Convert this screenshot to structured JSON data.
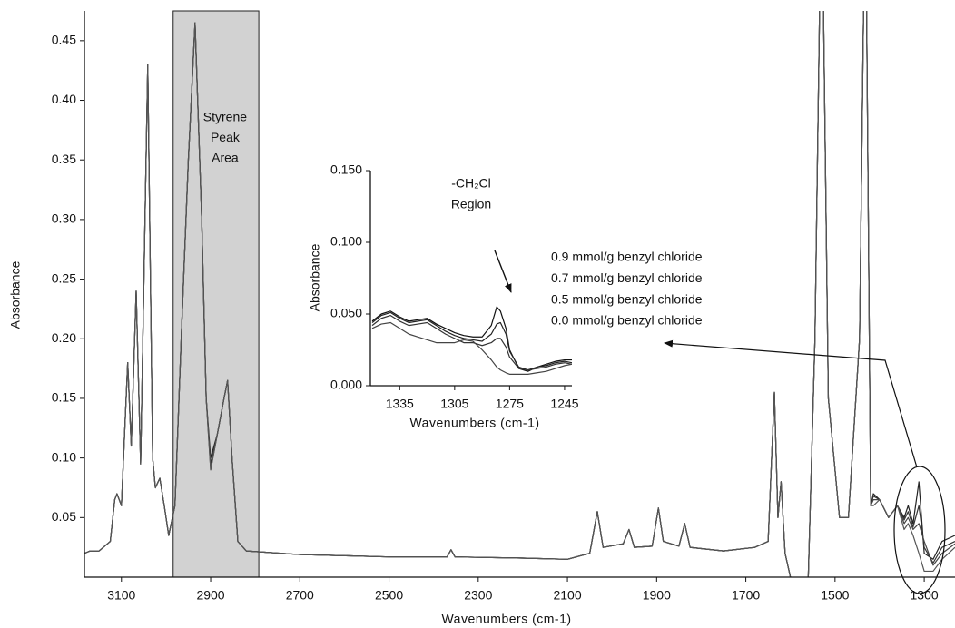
{
  "chart_data": [
    {
      "type": "line",
      "xlabel": "Wavenumbers (cm-1)",
      "ylabel": "Absorbance",
      "xlim": [
        3183,
        1231
      ],
      "ylim": [
        0,
        0.475
      ],
      "xticks": [
        3100,
        2900,
        2700,
        2500,
        2300,
        2100,
        1900,
        1700,
        1500,
        1300
      ],
      "yticks": [
        0.05,
        {
          "value": 0.1,
          "label": "0.10"
        },
        0.15,
        {
          "value": 0.2,
          "label": "0.20"
        },
        0.25,
        {
          "value": 0.3,
          "label": "0.30"
        },
        0.35,
        {
          "value": 0.4,
          "label": "0.40"
        },
        0.45
      ],
      "shaded_region": {
        "x": [
          2984,
          2792
        ],
        "label": [
          "Styrene",
          "Peak",
          "Area"
        ],
        "color": "#d2d2d2"
      },
      "x": [
        3183,
        3170,
        3150,
        3125,
        3115,
        3110,
        3100,
        3086,
        3078,
        3067,
        3057,
        3041,
        3030,
        3024,
        3014,
        3004,
        2994,
        2980,
        2966,
        2950,
        2935,
        2920,
        2910,
        2900,
        2885,
        2870,
        2862,
        2852,
        2839,
        2820,
        2700,
        2600,
        2500,
        2400,
        2370,
        2361,
        2352,
        2200,
        2100,
        2050,
        2033,
        2020,
        1975,
        1962,
        1950,
        1910,
        1896,
        1885,
        1850,
        1837,
        1825,
        1750,
        1680,
        1650,
        1636,
        1628,
        1621,
        1612,
        1600,
        1585,
        1560,
        1545,
        1530,
        1515,
        1490,
        1470,
        1445,
        1432,
        1420,
        1414,
        1400,
        1380,
        1360,
        1345,
        1336,
        1325,
        1312,
        1300,
        1280,
        1260,
        1231
      ],
      "series": [
        {
          "color": "#222222",
          "values": [
            0.02,
            0.022,
            0.022,
            0.03,
            0.065,
            0.07,
            0.06,
            0.18,
            0.11,
            0.24,
            0.095,
            0.43,
            0.1,
            0.075,
            0.083,
            0.06,
            0.035,
            0.06,
            0.2,
            0.35,
            0.465,
            0.3,
            0.15,
            0.1,
            0.12,
            0.15,
            0.165,
            0.1,
            0.03,
            0.022,
            0.019,
            0.018,
            0.017,
            0.017,
            0.017,
            0.023,
            0.017,
            0.016,
            0.015,
            0.02,
            0.055,
            0.025,
            0.028,
            0.04,
            0.025,
            0.026,
            0.058,
            0.03,
            0.026,
            0.045,
            0.025,
            0.022,
            0.025,
            0.03,
            0.155,
            0.05,
            0.08,
            0.02,
            0.0,
            -0.015,
            0.0,
            0.2,
            0.6,
            0.15,
            0.05,
            0.05,
            0.2,
            0.6,
            0.06,
            0.07,
            0.065,
            0.05,
            0.06,
            0.05,
            0.06,
            0.045,
            0.08,
            0.02,
            0.015,
            0.03,
            0.035
          ]
        },
        {
          "color": "#333333",
          "values": [
            0.02,
            0.022,
            0.022,
            0.03,
            0.065,
            0.07,
            0.06,
            0.18,
            0.11,
            0.24,
            0.095,
            0.43,
            0.1,
            0.075,
            0.083,
            0.06,
            0.035,
            0.06,
            0.2,
            0.35,
            0.465,
            0.3,
            0.15,
            0.095,
            0.12,
            0.15,
            0.165,
            0.1,
            0.03,
            0.022,
            0.019,
            0.018,
            0.017,
            0.017,
            0.017,
            0.023,
            0.017,
            0.016,
            0.015,
            0.02,
            0.055,
            0.025,
            0.028,
            0.04,
            0.025,
            0.026,
            0.058,
            0.03,
            0.026,
            0.045,
            0.025,
            0.022,
            0.025,
            0.03,
            0.155,
            0.05,
            0.08,
            0.02,
            0.0,
            -0.015,
            0.0,
            0.2,
            0.6,
            0.15,
            0.05,
            0.05,
            0.2,
            0.6,
            0.06,
            0.068,
            0.065,
            0.05,
            0.06,
            0.048,
            0.055,
            0.042,
            0.06,
            0.025,
            0.012,
            0.025,
            0.03
          ]
        },
        {
          "color": "#444444",
          "values": [
            0.02,
            0.022,
            0.022,
            0.03,
            0.065,
            0.07,
            0.06,
            0.18,
            0.11,
            0.24,
            0.095,
            0.43,
            0.1,
            0.075,
            0.083,
            0.06,
            0.035,
            0.06,
            0.2,
            0.35,
            0.465,
            0.3,
            0.15,
            0.09,
            0.12,
            0.15,
            0.165,
            0.1,
            0.03,
            0.022,
            0.019,
            0.018,
            0.017,
            0.017,
            0.017,
            0.023,
            0.017,
            0.016,
            0.015,
            0.02,
            0.055,
            0.025,
            0.028,
            0.04,
            0.025,
            0.026,
            0.058,
            0.03,
            0.026,
            0.045,
            0.025,
            0.022,
            0.025,
            0.03,
            0.155,
            0.05,
            0.08,
            0.02,
            0.0,
            -0.015,
            0.0,
            0.2,
            0.6,
            0.15,
            0.05,
            0.05,
            0.2,
            0.6,
            0.06,
            0.065,
            0.065,
            0.05,
            0.06,
            0.045,
            0.05,
            0.04,
            0.045,
            0.03,
            0.01,
            0.02,
            0.028
          ]
        },
        {
          "color": "#555555",
          "values": [
            0.02,
            0.022,
            0.022,
            0.03,
            0.065,
            0.07,
            0.06,
            0.18,
            0.11,
            0.24,
            0.095,
            0.43,
            0.1,
            0.075,
            0.083,
            0.06,
            0.035,
            0.06,
            0.2,
            0.35,
            0.465,
            0.3,
            0.15,
            0.09,
            0.12,
            0.15,
            0.165,
            0.1,
            0.03,
            0.022,
            0.019,
            0.018,
            0.017,
            0.017,
            0.017,
            0.023,
            0.017,
            0.016,
            0.015,
            0.02,
            0.055,
            0.025,
            0.028,
            0.04,
            0.025,
            0.026,
            0.058,
            0.03,
            0.026,
            0.045,
            0.025,
            0.022,
            0.025,
            0.03,
            0.155,
            0.05,
            0.08,
            0.02,
            0.0,
            -0.02,
            0.0,
            0.2,
            0.6,
            0.15,
            0.05,
            0.05,
            0.2,
            0.6,
            0.06,
            0.06,
            0.065,
            0.05,
            0.06,
            0.04,
            0.045,
            0.035,
            0.02,
            0.005,
            0.005,
            0.015,
            0.025
          ]
        }
      ]
    },
    {
      "type": "line",
      "xlabel": "Wavenumbers (cm-1)",
      "ylabel": "Absorbance",
      "annotation": [
        "-CH₂Cl",
        "Region"
      ],
      "xlim": [
        1351,
        1241
      ],
      "ylim": [
        0,
        0.15
      ],
      "xticks": [
        1335,
        1305,
        1275,
        1245
      ],
      "yticks": [
        {
          "value": 0,
          "label": "0.000"
        },
        {
          "value": 0.05,
          "label": "0.050"
        },
        {
          "value": 0.1,
          "label": "0.100"
        },
        {
          "value": 0.15,
          "label": "0.150"
        }
      ],
      "x": [
        1350,
        1345,
        1340,
        1335,
        1330,
        1325,
        1320,
        1315,
        1310,
        1305,
        1300,
        1295,
        1290,
        1285,
        1282,
        1280,
        1277,
        1275,
        1270,
        1265,
        1260,
        1255,
        1250,
        1245,
        1241
      ],
      "series": [
        {
          "name": "0.9 mmol/g benzyl chloride",
          "color": "#111111",
          "values": [
            0.045,
            0.05,
            0.052,
            0.048,
            0.045,
            0.046,
            0.047,
            0.043,
            0.04,
            0.037,
            0.035,
            0.034,
            0.034,
            0.042,
            0.055,
            0.052,
            0.04,
            0.025,
            0.012,
            0.01,
            0.013,
            0.015,
            0.017,
            0.018,
            0.018
          ]
        },
        {
          "name": "0.7 mmol/g benzyl chloride",
          "color": "#222222",
          "values": [
            0.044,
            0.049,
            0.051,
            0.047,
            0.044,
            0.045,
            0.046,
            0.042,
            0.038,
            0.035,
            0.033,
            0.032,
            0.031,
            0.036,
            0.043,
            0.044,
            0.036,
            0.024,
            0.013,
            0.011,
            0.013,
            0.014,
            0.016,
            0.017,
            0.016
          ]
        },
        {
          "name": "0.5 mmol/g benzyl chloride",
          "color": "#333333",
          "values": [
            0.042,
            0.047,
            0.049,
            0.045,
            0.042,
            0.043,
            0.044,
            0.04,
            0.036,
            0.033,
            0.03,
            0.03,
            0.028,
            0.03,
            0.033,
            0.033,
            0.027,
            0.02,
            0.012,
            0.011,
            0.012,
            0.013,
            0.015,
            0.016,
            0.015
          ]
        },
        {
          "name": "0.0 mmol/g benzyl chloride",
          "color": "#444444",
          "values": [
            0.04,
            0.043,
            0.044,
            0.04,
            0.036,
            0.034,
            0.032,
            0.03,
            0.03,
            0.03,
            0.032,
            0.031,
            0.025,
            0.018,
            0.013,
            0.011,
            0.009,
            0.008,
            0.008,
            0.008,
            0.009,
            0.01,
            0.012,
            0.014,
            0.015
          ]
        }
      ]
    }
  ]
}
